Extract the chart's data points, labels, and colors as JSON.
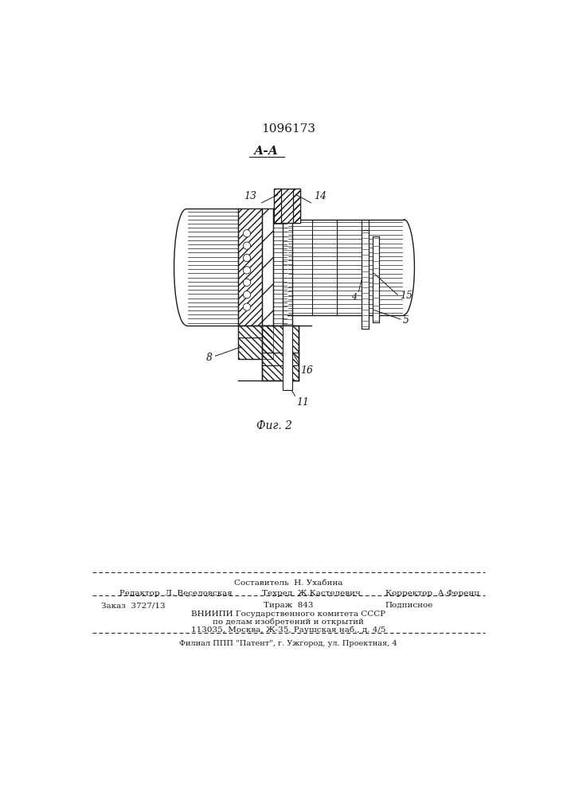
{
  "patent_number": "1096173",
  "section_label": "А-А",
  "fig_label": "Фиг. 2",
  "footer": {
    "sestavitel": "Составитель  Н. Ухабина",
    "redaktor": "Редактор  Л. Веселовская",
    "tekhred": "Техред  Ж.Кастелевич",
    "korrektor": "Корректор  А.Ференц",
    "zakaz": "Заказ  3727/13",
    "tirazh": "Тираж  843",
    "podpisnoe": "Подписное",
    "vniiipi": "ВНИИПИ Государственного комитета СССР",
    "po_delam": "по делам изобретений и открытий",
    "address": "113035, Москва, Ж-35, Раушская наб., д. 4/5",
    "filial": "Филиал ППП \"Патент\", г. Ужгород, ул. Проектная, 4"
  },
  "bg_color": "#ffffff",
  "line_color": "#1a1a1a"
}
